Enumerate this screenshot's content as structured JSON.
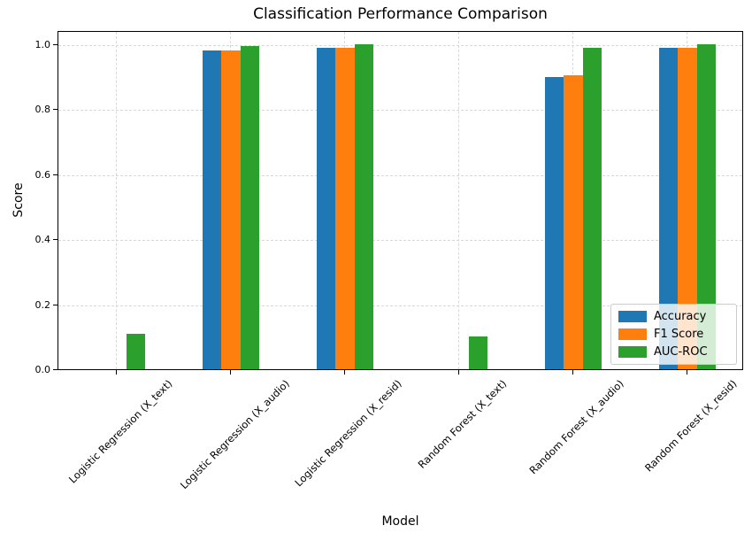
{
  "chart_data": {
    "type": "bar",
    "title": "Classification Performance Comparison",
    "xlabel": "Model",
    "ylabel": "Score",
    "categories": [
      "Logistic Regression (X_text)",
      "Logistic Regression (X_audio)",
      "Logistic Regression (X_resid)",
      "Random Forest (X_text)",
      "Random Forest (X_audio)",
      "Random Forest (X_resid)"
    ],
    "series": [
      {
        "name": "Accuracy",
        "color": "#1f77b4",
        "values": [
          0.0,
          0.98,
          0.99,
          0.0,
          0.9,
          0.99
        ]
      },
      {
        "name": "F1 Score",
        "color": "#ff7f0e",
        "values": [
          0.0,
          0.98,
          0.99,
          0.0,
          0.905,
          0.99
        ]
      },
      {
        "name": "AUC-ROC",
        "color": "#2ca02c",
        "values": [
          0.11,
          0.995,
          1.0,
          0.1,
          0.99,
          1.0
        ]
      }
    ],
    "yticks": [
      0.0,
      0.2,
      0.4,
      0.6,
      0.8,
      1.0
    ],
    "ylim": [
      0,
      1.044
    ],
    "grid": true,
    "grid_style": "dashed",
    "legend_position": "lower right"
  }
}
